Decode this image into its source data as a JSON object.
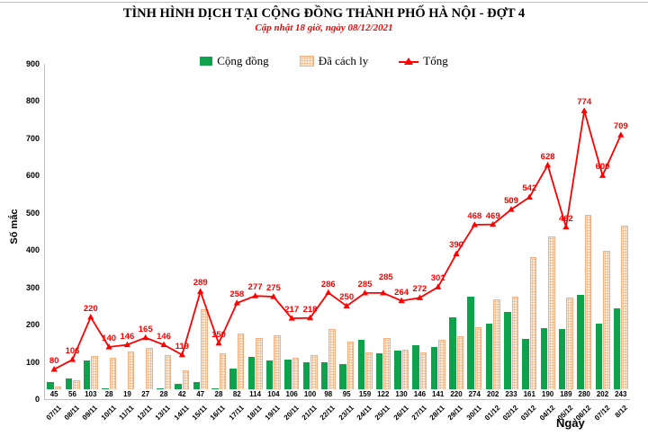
{
  "header": {
    "title": "TÌNH HÌNH DỊCH TẠI CỘNG ĐỒNG THÀNH PHỐ HÀ NỘI - ĐỢT 4",
    "subtitle": "Cập nhật 18 giờ, ngày 08/12/2021"
  },
  "legend": [
    {
      "label": "Cộng đồng",
      "color": "#0fa24c",
      "type": "bar"
    },
    {
      "label": "Đã cách ly",
      "color": "#fdebda",
      "type": "bar-pattern"
    },
    {
      "label": "Tổng",
      "color": "#ff0000",
      "type": "line"
    }
  ],
  "colors": {
    "community_green": "#0fa24c",
    "quarantine_fill": "#fdebda",
    "quarantine_dot": "#f0ac78",
    "quarantine_border": "#f2b185",
    "total_red": "#ff0000",
    "axis_gray": "#bfbfbf"
  },
  "chart_data": {
    "type": "bar",
    "title": "TÌNH HÌNH DỊCH TẠI CỘNG ĐỒNG THÀNH PHỐ HÀ NỘI - ĐỢT 4",
    "subtitle": "Cập nhật 18 giờ, ngày 08/12/2021",
    "xlabel": "Ngày",
    "ylabel": "Số mắc",
    "ylim": [
      0,
      900
    ],
    "ytick_step": 100,
    "grid": false,
    "legend_position": "top",
    "categories": [
      "07/11",
      "08/11",
      "09/11",
      "10/11",
      "11/11",
      "12/11",
      "13/11",
      "14/11",
      "15/11",
      "16/11",
      "17/11",
      "18/11",
      "19/11",
      "20/11",
      "21/11",
      "22/11",
      "23/11",
      "24/11",
      "25/11",
      "26/11",
      "27/11",
      "28/11",
      "29/11",
      "30/11",
      "01/12",
      "02/12",
      "03/12",
      "04/12",
      "05/12",
      "06/12",
      "07/12",
      "8/12"
    ],
    "series": [
      {
        "name": "Cộng đồng",
        "type": "bar",
        "color": "#0fa24c",
        "values": [
          45,
          56,
          103,
          28,
          19,
          27,
          28,
          42,
          47,
          28,
          82,
          114,
          104,
          106,
          100,
          98,
          95,
          159,
          122,
          130,
          146,
          141,
          220,
          274,
          202,
          233,
          161,
          190,
          189,
          280,
          202,
          243
        ],
        "labels_visible": true
      },
      {
        "name": "Đã cách ly",
        "type": "bar",
        "color": "#fdebda",
        "values": [
          35,
          50,
          117,
          112,
          127,
          138,
          118,
          77,
          242,
          122,
          176,
          163,
          171,
          111,
          118,
          188,
          155,
          126,
          163,
          134,
          126,
          160,
          170,
          194,
          267,
          276,
          381,
          438,
          273,
          494,
          398,
          466
        ],
        "labels_visible": false
      },
      {
        "name": "Tổng",
        "type": "line",
        "color": "#ff0000",
        "values": [
          80,
          106,
          220,
          140,
          146,
          165,
          146,
          119,
          289,
          150,
          258,
          277,
          275,
          217,
          218,
          286,
          250,
          285,
          285,
          264,
          272,
          301,
          390,
          468,
          469,
          509,
          542,
          628,
          462,
          774,
          600,
          709
        ],
        "labels_visible": true
      }
    ]
  }
}
